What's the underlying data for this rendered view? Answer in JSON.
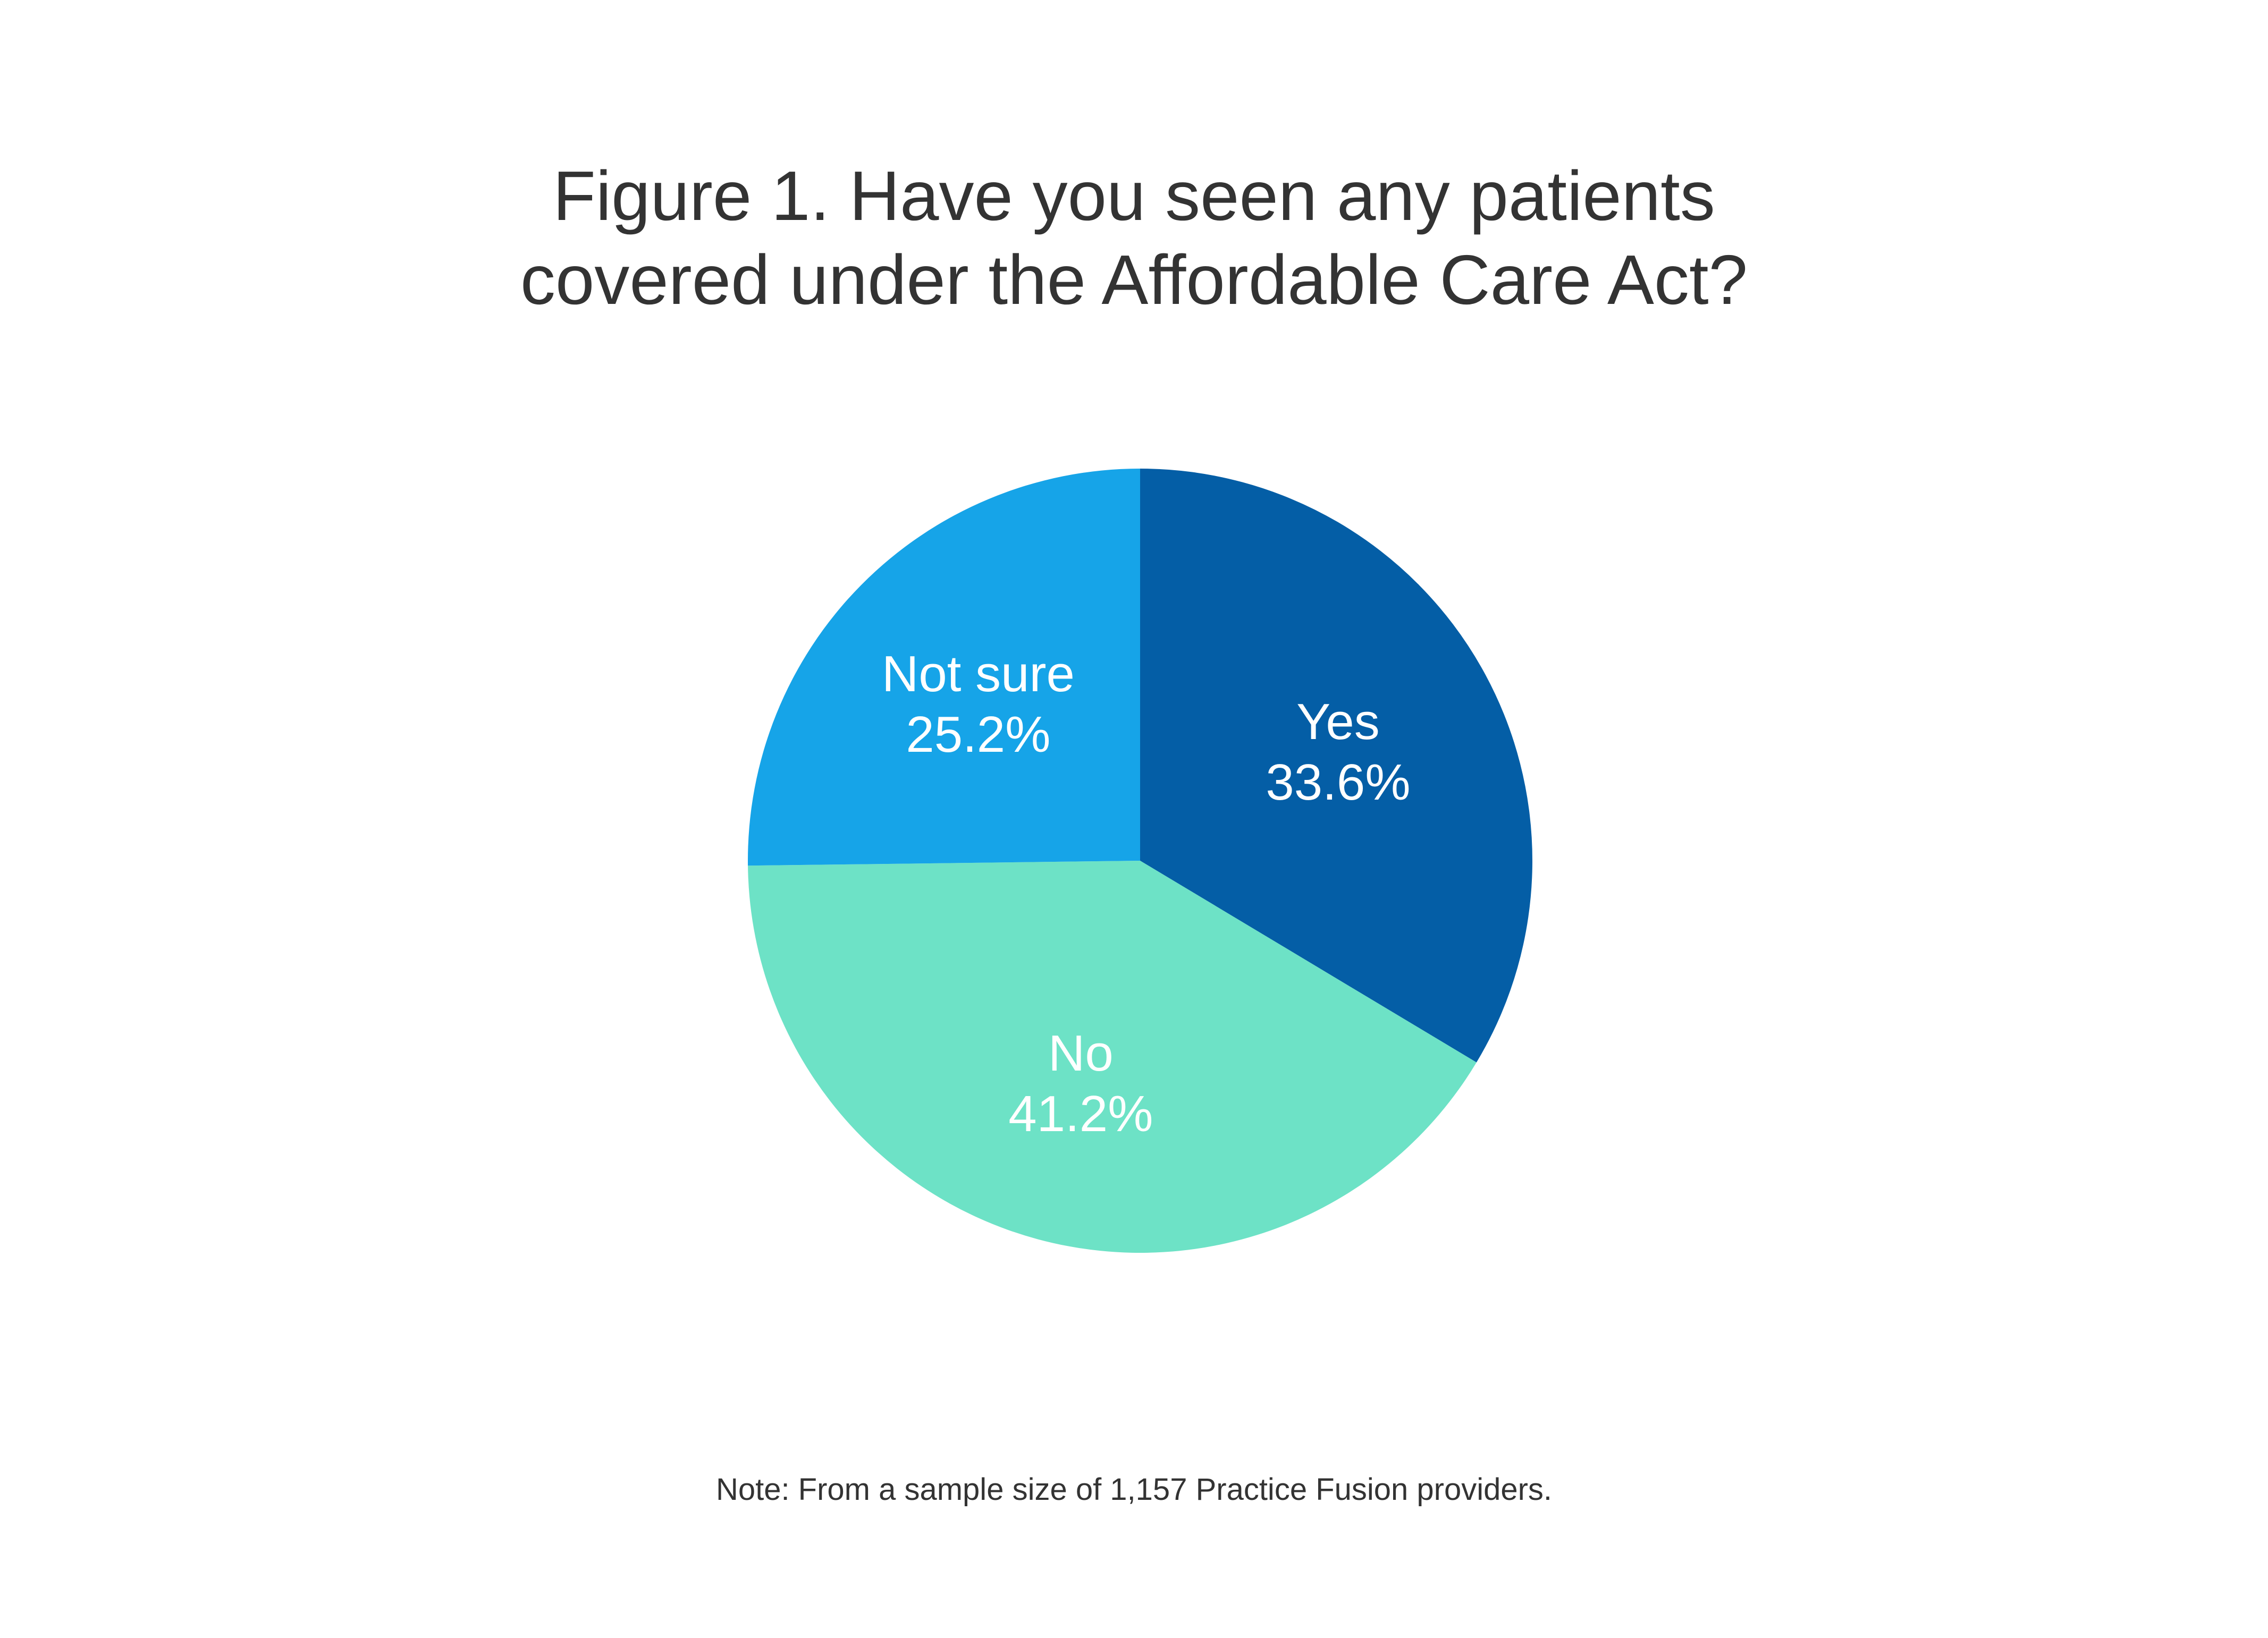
{
  "chart_data": {
    "type": "pie",
    "title": [
      "Figure 1. Have you seen any patients",
      "covered under the Affordable Care Act?"
    ],
    "note": "Note: From a sample size of 1,157 Practice Fusion providers.",
    "slices": [
      {
        "label": "Yes",
        "value": 33.6,
        "value_label": "33.6%",
        "color": "#045EA6"
      },
      {
        "label": "No",
        "value": 41.2,
        "value_label": "41.2%",
        "color": "#6DE2C6"
      },
      {
        "label": "Not sure",
        "value": 25.2,
        "value_label": "25.2%",
        "color": "#16A4E8"
      }
    ],
    "start_angle": "top, clockwise",
    "legend": "none"
  }
}
